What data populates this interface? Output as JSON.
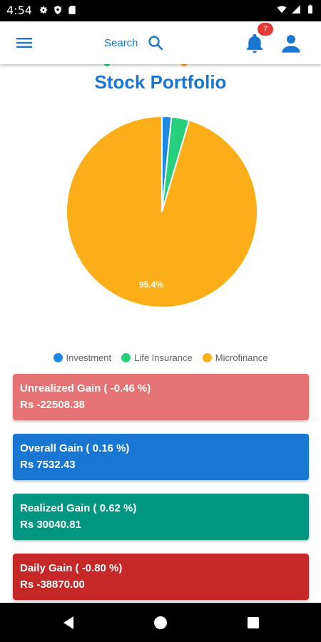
{
  "status_bar": {
    "time": "4:54",
    "left_icons": [
      "gear-icon",
      "shield-icon",
      "sd-card-icon"
    ],
    "right_icons": [
      "wifi-icon",
      "signal-icon",
      "battery-icon"
    ]
  },
  "app_bar": {
    "menu_icon": "hamburger-menu-icon",
    "search_label": "Search",
    "search_icon": "search-icon",
    "notification_icon": "bell-icon",
    "notification_count": "7",
    "profile_icon": "user-icon"
  },
  "page": {
    "title": "Stock Portfolio"
  },
  "chart_data": {
    "type": "pie",
    "title": "",
    "slices": [
      {
        "label": "Investment",
        "value": 1.6,
        "color": "#1E88E5"
      },
      {
        "label": "Life Insurance",
        "value": 3.0,
        "color": "#26D07C"
      },
      {
        "label": "Microfinance",
        "value": 95.4,
        "color": "#FBAE17"
      }
    ],
    "data_labels": [
      "95.4%"
    ],
    "legend": {
      "placement": "bottom",
      "items": [
        "Investment",
        "Life Insurance",
        "Microfinance"
      ]
    }
  },
  "cards": [
    {
      "title": "Unrealized Gain ( -0.46 %)",
      "value": "Rs -22508.38",
      "color": "#E57373"
    },
    {
      "title": "Overall Gain ( 0.16 %)",
      "value": "Rs 7532.43",
      "color": "#1976D2"
    },
    {
      "title": "Realized Gain ( 0.62 %)",
      "value": "Rs 30040.81",
      "color": "#00967F"
    },
    {
      "title": "Daily Gain ( -0.80 %)",
      "value": "Rs -38870.00",
      "color": "#C62828"
    }
  ],
  "nav_bar": {
    "back_icon": "back-triangle-icon",
    "home_icon": "home-circle-icon",
    "recents_icon": "recents-square-icon"
  }
}
